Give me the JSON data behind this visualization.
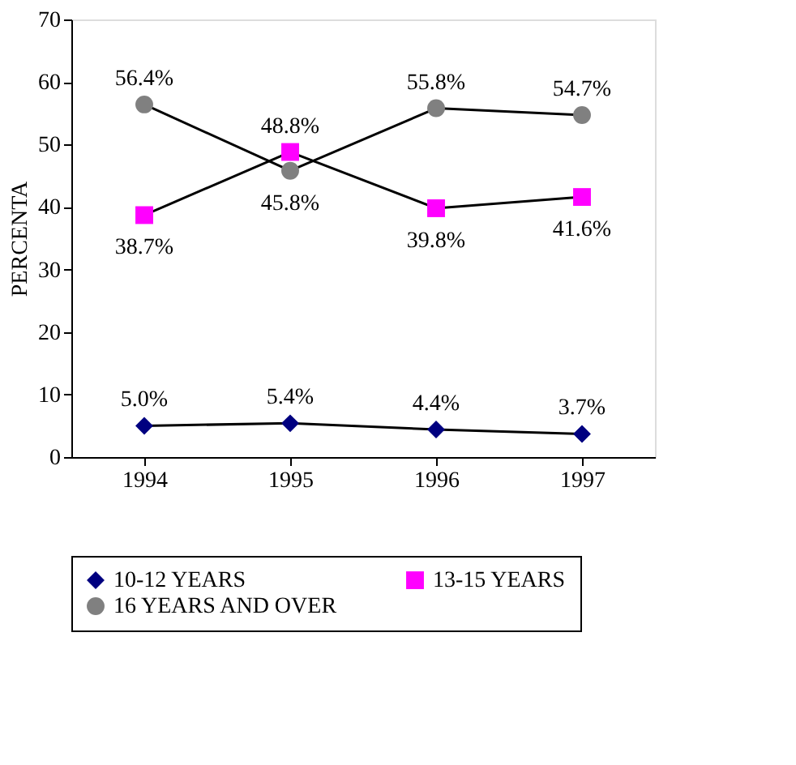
{
  "chart_data": {
    "type": "line",
    "ylabel": "PERCENTA",
    "categories": [
      "1994",
      "1995",
      "1996",
      "1997"
    ],
    "ylim": [
      0,
      70
    ],
    "yticks": [
      0,
      10,
      20,
      30,
      40,
      50,
      60,
      70
    ],
    "grid": false,
    "legend": "bottom",
    "line_style": "solid",
    "series": [
      {
        "name": "10-12 YEARS",
        "color": "#000080",
        "marker": "diamond",
        "values": [
          5.0,
          5.4,
          4.4,
          3.7
        ],
        "value_labels": [
          "5.0%",
          "5.4%",
          "4.4%",
          "3.7%"
        ]
      },
      {
        "name": "13-15 YEARS",
        "color": "#ff00ff",
        "marker": "square",
        "values": [
          38.7,
          48.8,
          39.8,
          41.6
        ],
        "value_labels": [
          "38.7%",
          "48.8%",
          "39.8%",
          "41.6%"
        ]
      },
      {
        "name": "16 YEARS AND OVER",
        "color": "#808080",
        "marker": "circle",
        "values": [
          56.4,
          45.8,
          55.8,
          54.7
        ],
        "value_labels": [
          "56.4%",
          "45.8%",
          "55.8%",
          "54.7%"
        ]
      }
    ]
  }
}
